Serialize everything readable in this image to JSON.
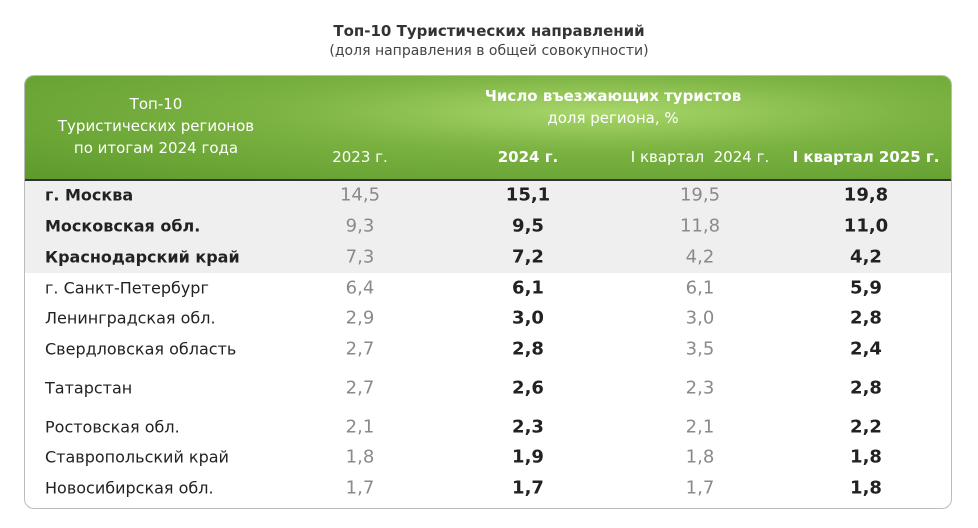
{
  "header": {
    "title": "Топ-10 Туристических направлений",
    "subtitle": "(доля направления в общей совокупности)"
  },
  "table": {
    "corner": [
      "Топ-10",
      "Туристических регионов",
      "по итогам 2024 года"
    ],
    "group_title": "Число въезжающих туристов",
    "group_subtitle": "доля региона, %",
    "columns": [
      "2023 г.",
      "2024 г.",
      "I квартал  2024 г.",
      "I квартал 2025 г."
    ],
    "rows": [
      [
        "г. Москва",
        "14,5",
        "15,1",
        "19,5",
        "19,8"
      ],
      [
        "Московская обл.",
        "9,3",
        "9,5",
        "11,8",
        "11,0"
      ],
      [
        "Краснодарский край",
        "7,3",
        "7,2",
        "4,2",
        "4,2"
      ],
      [
        "г. Санкт-Петербург",
        "6,4",
        "6,1",
        "6,1",
        "5,9"
      ],
      [
        "Ленинградская обл.",
        "2,9",
        "3,0",
        "3,0",
        "2,8"
      ],
      [
        "Свердловская область",
        "2,7",
        "2,8",
        "3,5",
        "2,4"
      ],
      [
        "Татарстан",
        "2,7",
        "2,6",
        "2,3",
        "2,8"
      ],
      [
        "Ростовская обл.",
        "2,1",
        "2,3",
        "2,1",
        "2,2"
      ],
      [
        "Ставропольский край",
        "1,8",
        "1,9",
        "1,8",
        "1,8"
      ],
      [
        "Новосибирская обл.",
        "1,7",
        "1,7",
        "1,7",
        "1,8"
      ]
    ]
  }
}
